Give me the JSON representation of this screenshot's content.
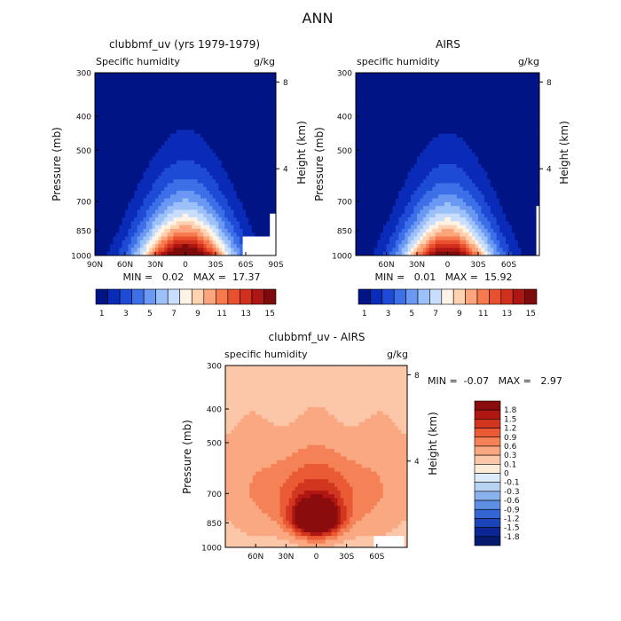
{
  "page_title": "ANN",
  "chart_data": [
    {
      "type": "heatmap",
      "title": "clubbmf_uv (yrs 1979-1979)",
      "left_label": "Specific humidity",
      "right_label": "g/kg",
      "xlabel": "",
      "ylabel": "Pressure (mb)",
      "y2label": "Height (km)",
      "x_ticks": [
        "90N",
        "60N",
        "30N",
        "0",
        "30S",
        "60S",
        "90S"
      ],
      "y_ticks": [
        "300",
        "400",
        "500",
        "700",
        "850",
        "1000"
      ],
      "y2_ticks": [
        "8",
        "4"
      ],
      "stats": "MIN =   0.02   MAX =  17.37",
      "colorbar": {
        "labels": [
          "1",
          "3",
          "5",
          "7",
          "9",
          "11",
          "13",
          "15"
        ],
        "colors": [
          "#001485",
          "#0a2ab8",
          "#1e4bd6",
          "#3c6fe8",
          "#6a98f2",
          "#9cc0f8",
          "#c8defc",
          "#fff3e6",
          "#ffd2b0",
          "#fca47c",
          "#f77a4e",
          "#e8502f",
          "#d1301c",
          "#ad1612",
          "#7e0b0b"
        ]
      },
      "field": {
        "levels": [
          1,
          2,
          3,
          4,
          5,
          6,
          7,
          8,
          9,
          10,
          11,
          12,
          13,
          14,
          15
        ],
        "peak_value": 17.37,
        "peak_lat": 0,
        "lat_range": [
          90,
          -90
        ],
        "pressure_range": [
          300,
          1000
        ],
        "missing_region": "right side, Antarctic surface"
      }
    },
    {
      "type": "heatmap",
      "title": "AIRS",
      "left_label": "specific humidity",
      "right_label": "g/kg",
      "xlabel": "",
      "ylabel": "Pressure (mb)",
      "y2label": "Height (km)",
      "x_ticks": [
        "60N",
        "30N",
        "0",
        "30S",
        "60S"
      ],
      "y_ticks": [
        "300",
        "400",
        "500",
        "700",
        "850",
        "1000"
      ],
      "y2_ticks": [
        "8",
        "4"
      ],
      "stats": "MIN =   0.01   MAX =  15.92",
      "colorbar": {
        "labels": [
          "1",
          "3",
          "5",
          "7",
          "9",
          "11",
          "13",
          "15"
        ],
        "colors": [
          "#001485",
          "#0a2ab8",
          "#1e4bd6",
          "#3c6fe8",
          "#6a98f2",
          "#9cc0f8",
          "#c8defc",
          "#fff3e6",
          "#ffd2b0",
          "#fca47c",
          "#f77a4e",
          "#e8502f",
          "#d1301c",
          "#ad1612",
          "#7e0b0b"
        ]
      },
      "field": {
        "levels": [
          1,
          2,
          3,
          4,
          5,
          6,
          7,
          8,
          9,
          10,
          11,
          12,
          13,
          14,
          15
        ],
        "peak_value": 15.92,
        "peak_lat": 0,
        "lat_range": [
          90,
          -90
        ],
        "pressure_range": [
          300,
          1000
        ]
      }
    },
    {
      "type": "heatmap",
      "title": "clubbmf_uv - AIRS",
      "left_label": "specific humidity",
      "right_label": "g/kg",
      "xlabel": "",
      "ylabel": "Pressure (mb)",
      "y2label": "Height (km)",
      "x_ticks": [
        "60N",
        "30N",
        "0",
        "30S",
        "60S"
      ],
      "y_ticks": [
        "300",
        "400",
        "500",
        "700",
        "850",
        "1000"
      ],
      "y2_ticks": [
        "8",
        "4"
      ],
      "stats": "MIN =  -0.07   MAX =   2.97",
      "colorbar": {
        "labels": [
          "1.8",
          "1.5",
          "1.2",
          "0.9",
          "0.6",
          "0.3",
          "0.1",
          "0",
          "-0.1",
          "-0.3",
          "-0.6",
          "-0.9",
          "-1.2",
          "-1.5",
          "-1.8"
        ],
        "colors": [
          "#8a0c0c",
          "#b01712",
          "#d2361f",
          "#ea5a35",
          "#f58256",
          "#f9a882",
          "#fcc7a8",
          "#feebd8",
          "#dcebfa",
          "#b8d2f4",
          "#8ab2ec",
          "#5d8ee2",
          "#3466d3",
          "#1a44b8",
          "#0c2694",
          "#041a6e"
        ]
      },
      "field": {
        "levels": [
          -1.8,
          -1.5,
          -1.2,
          -0.9,
          -0.6,
          -0.3,
          -0.1,
          0,
          0.1,
          0.3,
          0.6,
          0.9,
          1.2,
          1.5,
          1.8
        ],
        "peak_value": 2.97,
        "peak_lat": 0,
        "peak_pressure": 850,
        "lat_range": [
          90,
          -90
        ],
        "pressure_range": [
          300,
          1000
        ],
        "missing_region": "lower right, Antarctic surface"
      }
    }
  ]
}
